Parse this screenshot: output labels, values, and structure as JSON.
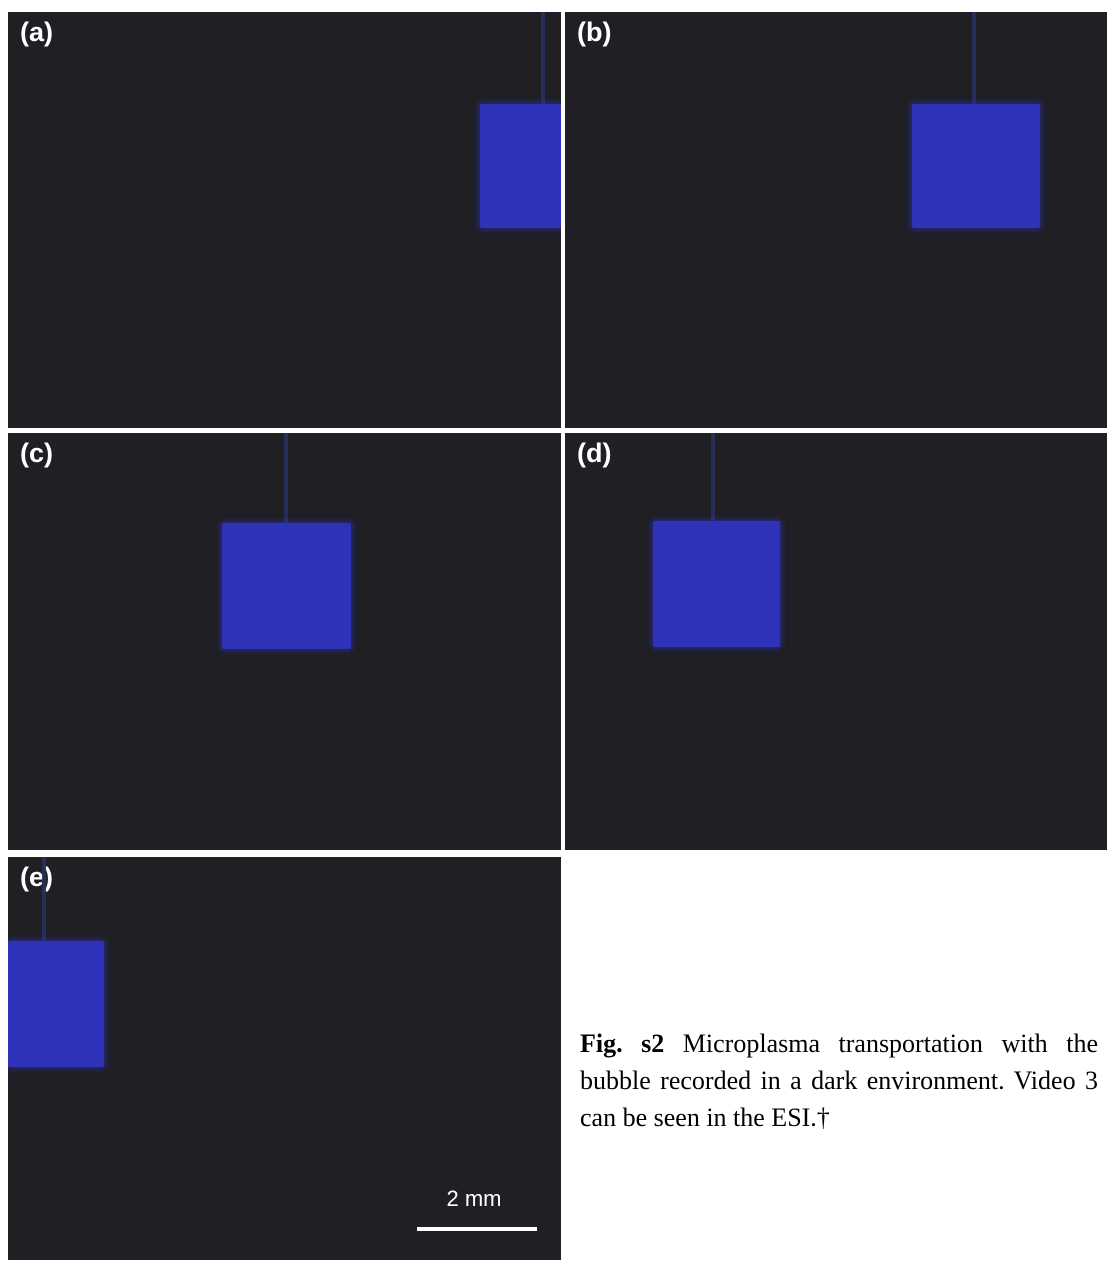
{
  "figure": {
    "panels": [
      {
        "id": "a",
        "label": "(a)"
      },
      {
        "id": "b",
        "label": "(b)"
      },
      {
        "id": "c",
        "label": "(c)"
      },
      {
        "id": "d",
        "label": "(d)"
      },
      {
        "id": "e",
        "label": "(e)"
      }
    ],
    "scale_bar": {
      "label": "2 mm"
    },
    "caption": {
      "label": "Fig. s2",
      "text": " Microplasma transportation with the bubble recorded in a dark environment. Video 3 can be seen in the ESI.†"
    },
    "colors": {
      "background": "#1f1f24",
      "plasma": "#2e32b8",
      "label_text": "#ffffff"
    }
  }
}
